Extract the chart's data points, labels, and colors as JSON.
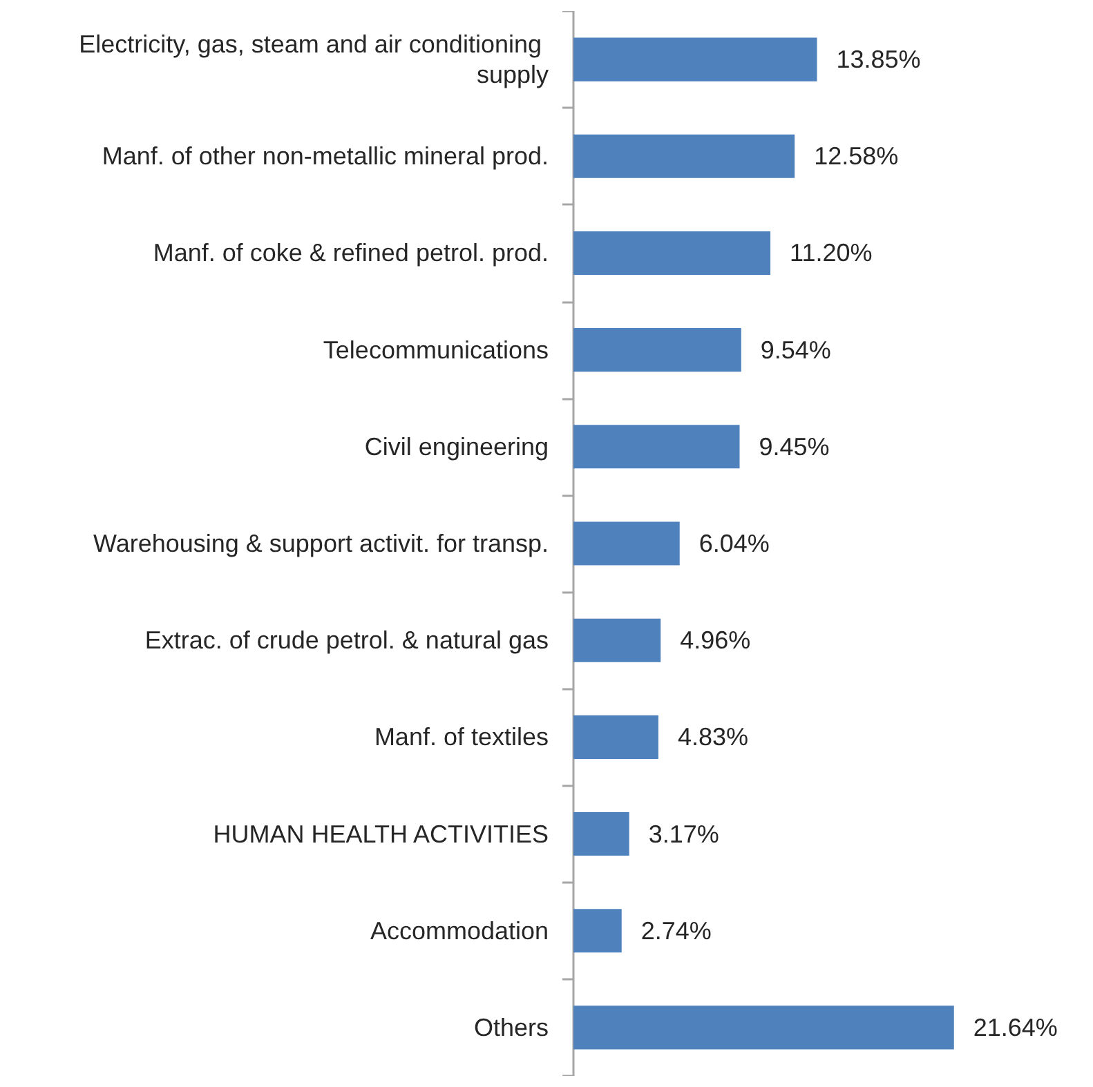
{
  "chart_data": {
    "type": "bar",
    "orientation": "horizontal",
    "categories": [
      "Electricity, gas, steam and air conditioning supply",
      "Manf. of other non-metallic mineral prod.",
      "Manf. of coke & refined petrol. prod.",
      "Telecommunications",
      "Civil engineering",
      "Warehousing & support activit. for transp.",
      "Extrac. of crude petrol. & natural gas",
      "Manf. of textiles",
      "HUMAN HEALTH ACTIVITIES",
      "Accommodation",
      "Others"
    ],
    "values": [
      13.85,
      12.58,
      11.2,
      9.54,
      9.45,
      6.04,
      4.96,
      4.83,
      3.17,
      2.74,
      21.64
    ],
    "value_labels": [
      "13.85%",
      "12.58%",
      "11.20%",
      "9.54%",
      "9.45%",
      "6.04%",
      "4.96%",
      "4.83%",
      "3.17%",
      "2.74%",
      "21.64%"
    ],
    "color": "#4f81bd"
  }
}
